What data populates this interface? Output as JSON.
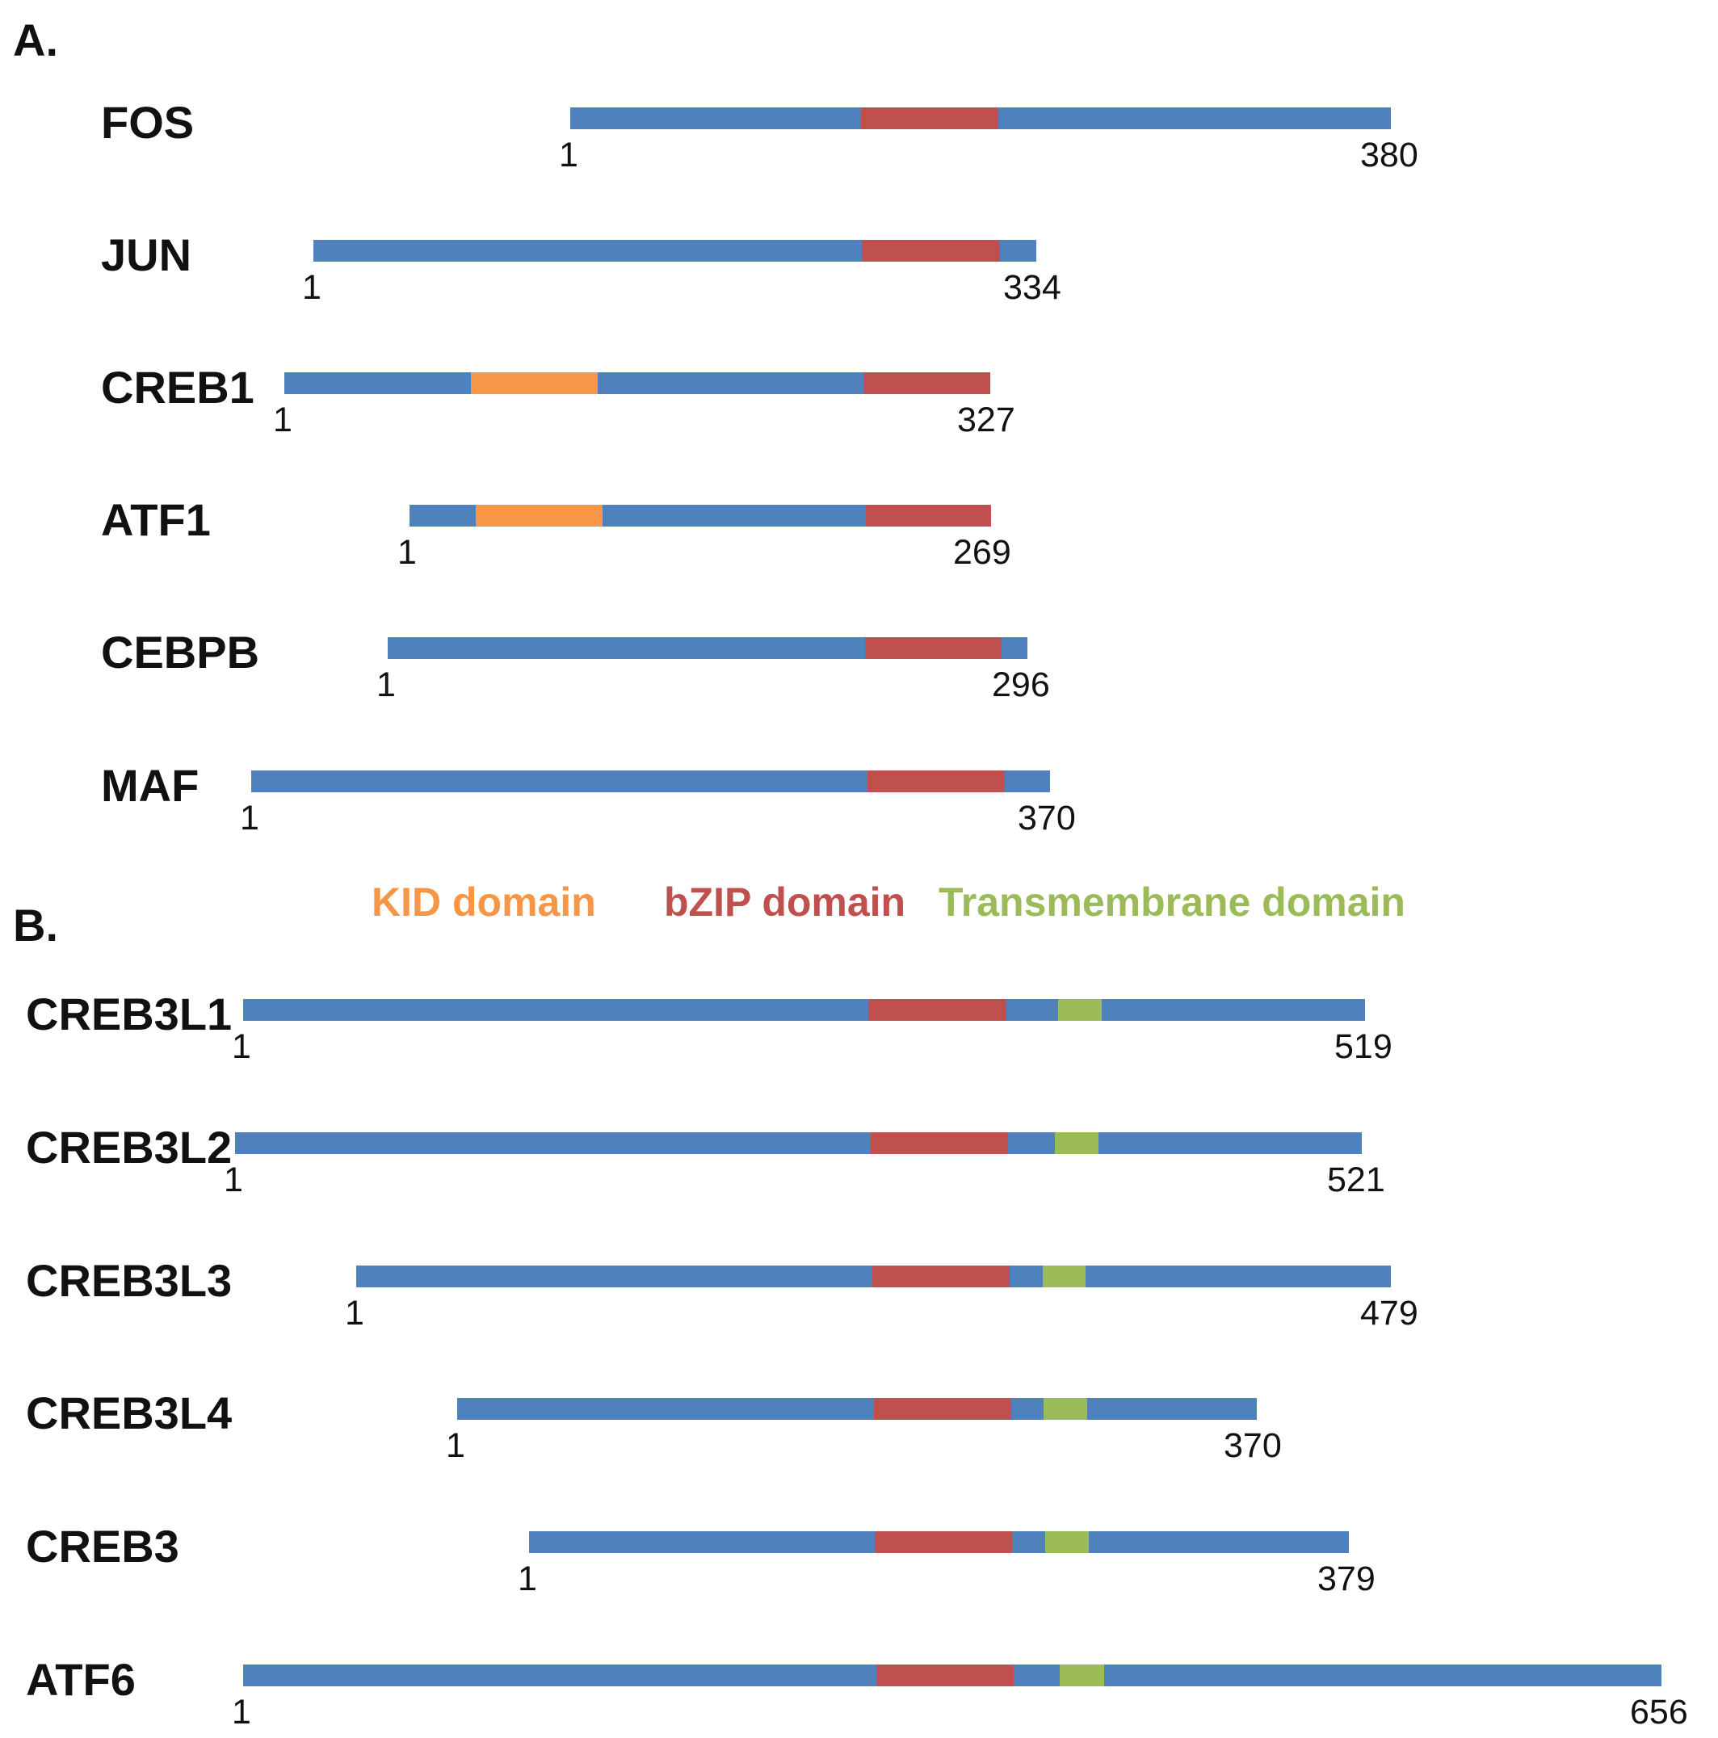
{
  "colors": {
    "backbone": "#4f81bd",
    "bzip": "#c0504d",
    "kid": "#f79646",
    "transmembrane": "#9bbb59"
  },
  "section_a": {
    "label": "A."
  },
  "section_b": {
    "label": "B."
  },
  "legend": [
    {
      "label": "KID domain",
      "color": "#f79646"
    },
    {
      "label": "bZIP domain",
      "color": "#c0504d"
    },
    {
      "label": "Transmembrane domain",
      "color": "#9bbb59"
    }
  ],
  "proteins": [
    {
      "name": "FOS",
      "start": "1",
      "end": "380",
      "segments": [
        "backbone",
        "bzip",
        "backbone"
      ]
    },
    {
      "name": "JUN",
      "start": "1",
      "end": "334",
      "segments": [
        "backbone",
        "bzip",
        "backbone"
      ]
    },
    {
      "name": "CREB1",
      "start": "1",
      "end": "327",
      "segments": [
        "backbone",
        "kid",
        "backbone",
        "bzip"
      ]
    },
    {
      "name": "ATF1",
      "start": "1",
      "end": "269",
      "segments": [
        "backbone",
        "kid",
        "backbone",
        "bzip"
      ]
    },
    {
      "name": "CEBPB",
      "start": "1",
      "end": "296",
      "segments": [
        "backbone",
        "bzip",
        "backbone"
      ]
    },
    {
      "name": "MAF",
      "start": "1",
      "end": "370",
      "segments": [
        "backbone",
        "bzip",
        "backbone"
      ]
    },
    {
      "name": "CREB3L1",
      "start": "1",
      "end": "519",
      "segments": [
        "backbone",
        "bzip",
        "backbone",
        "transmembrane",
        "backbone"
      ]
    },
    {
      "name": "CREB3L2",
      "start": "1",
      "end": "521",
      "segments": [
        "backbone",
        "bzip",
        "backbone",
        "transmembrane",
        "backbone"
      ]
    },
    {
      "name": "CREB3L3",
      "start": "1",
      "end": "479",
      "segments": [
        "backbone",
        "bzip",
        "backbone",
        "transmembrane",
        "backbone"
      ]
    },
    {
      "name": "CREB3L4",
      "start": "1",
      "end": "370",
      "segments": [
        "backbone",
        "bzip",
        "backbone",
        "transmembrane",
        "backbone"
      ]
    },
    {
      "name": "CREB3",
      "start": "1",
      "end": "379",
      "segments": [
        "backbone",
        "bzip",
        "backbone",
        "transmembrane",
        "backbone"
      ]
    },
    {
      "name": "ATF6",
      "start": "1",
      "end": "656",
      "segments": [
        "backbone",
        "bzip",
        "backbone",
        "transmembrane",
        "backbone"
      ]
    }
  ]
}
